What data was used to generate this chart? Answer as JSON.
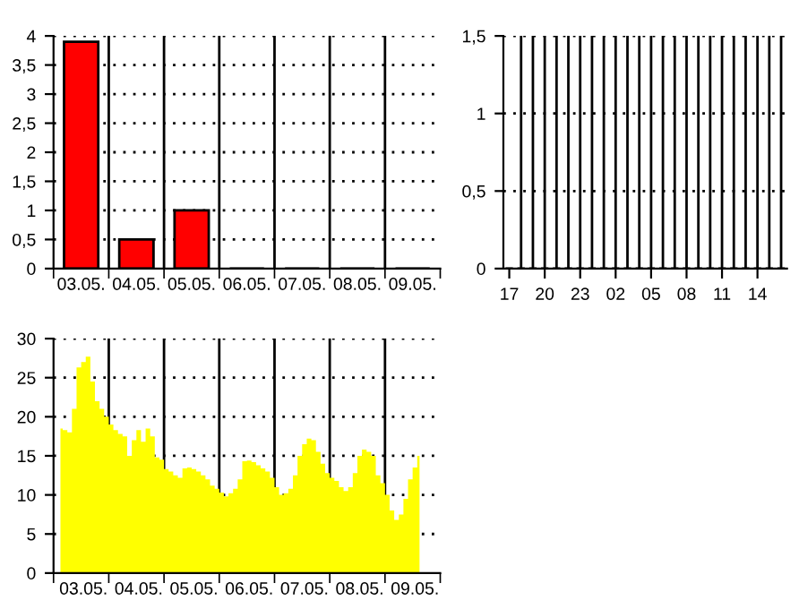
{
  "chart_data": [
    {
      "type": "bar",
      "categories": [
        "03.05.",
        "04.05.",
        "05.05.",
        "06.05.",
        "07.05.",
        "08.05.",
        "09.05."
      ],
      "values": [
        3.9,
        0.5,
        1.0,
        0,
        0,
        0,
        0
      ],
      "color": "#ff0000",
      "ylim": [
        0,
        4
      ],
      "yticks": [
        0,
        {
          "value": 0.5,
          "label": "0,5"
        },
        1,
        {
          "value": 1.5,
          "label": "1,5"
        },
        2,
        {
          "value": 2.5,
          "label": "2,5"
        },
        3,
        {
          "value": 3.5,
          "label": "3,5"
        },
        4
      ],
      "grid": true
    },
    {
      "type": "bar",
      "categories": [
        "17",
        null,
        null,
        "20",
        null,
        null,
        "23",
        null,
        null,
        "02",
        null,
        null,
        "05",
        null,
        null,
        "08",
        null,
        null,
        "11",
        null,
        null,
        "14",
        null,
        null
      ],
      "values": [
        0,
        0,
        0,
        0,
        0,
        0,
        0,
        0,
        0,
        0,
        0,
        0,
        0,
        0,
        0,
        0,
        0,
        0,
        0,
        0,
        0,
        0,
        0,
        0
      ],
      "color": "#000000",
      "ylim": [
        0,
        1.5
      ],
      "yticks": [
        0,
        {
          "value": 0.5,
          "label": "0,5"
        },
        1,
        {
          "value": 1.5,
          "label": "1,5"
        }
      ],
      "grid": true
    },
    {
      "type": "area",
      "color": "#ffff00",
      "ylim": [
        0,
        30
      ],
      "yticks": [
        0,
        5,
        10,
        15,
        20,
        25,
        30
      ],
      "grid": true,
      "categories": [
        null,
        null,
        null,
        null,
        null,
        null,
        "03.05.",
        null,
        null,
        null,
        null,
        null,
        null,
        null,
        null,
        null,
        null,
        null,
        "04.05.",
        null,
        null,
        null,
        null,
        null,
        null,
        null,
        null,
        null,
        null,
        null,
        "05.05.",
        null,
        null,
        null,
        null,
        null,
        null,
        null,
        null,
        null,
        null,
        null,
        "06.05.",
        null,
        null,
        null,
        null,
        null,
        null,
        null,
        null,
        null,
        null,
        null,
        "07.05.",
        null,
        null,
        null,
        null,
        null,
        null,
        null,
        null,
        null,
        null,
        null,
        "08.05.",
        null,
        null,
        null,
        null,
        null,
        null,
        null,
        null,
        null,
        null,
        null,
        "09.05.",
        null,
        null,
        null,
        null,
        null
      ],
      "values": [
        null,
        18.5,
        18.3,
        18,
        21,
        26.3,
        27,
        27.7,
        24.5,
        22,
        21,
        20,
        19,
        18.3,
        17.8,
        17.5,
        15,
        17,
        18.3,
        16.8,
        18.5,
        17.5,
        14.8,
        14.5,
        13.3,
        13,
        12.5,
        12.2,
        13.4,
        13.5,
        13.3,
        13,
        12.5,
        12,
        11.2,
        10.8,
        10.3,
        9.8,
        10.2,
        10.8,
        12,
        14.3,
        14.4,
        14.2,
        13.8,
        13.4,
        13,
        12.2,
        11,
        10,
        10.2,
        10.8,
        12.5,
        15,
        16.5,
        17.2,
        17,
        15.5,
        14,
        12.8,
        12.2,
        11.8,
        11,
        10.5,
        11,
        12.8,
        15,
        15.8,
        15.5,
        15,
        12.5,
        11.5,
        10,
        8,
        6.8,
        7.5,
        9.5,
        12,
        13.5,
        15,
        null,
        null,
        null,
        null
      ]
    }
  ]
}
